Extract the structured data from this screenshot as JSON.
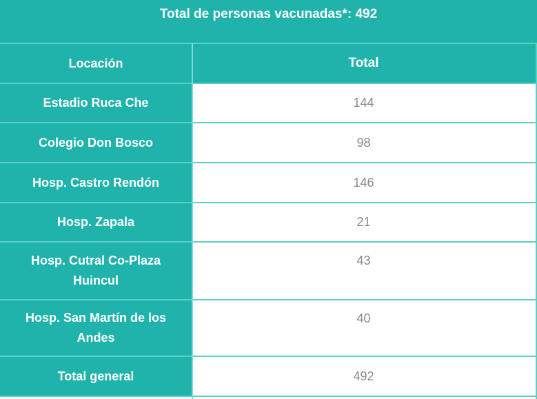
{
  "title": "Total de personas vacunadas*: 492",
  "header": {
    "location": "Locación",
    "total": "Total"
  },
  "rows": [
    {
      "location": "Estadio Ruca Che",
      "total": "144"
    },
    {
      "location": "Colegio Don Bosco",
      "total": "98"
    },
    {
      "location": "Hosp. Castro Rendón",
      "total": "146"
    },
    {
      "location": "Hosp. Zapala",
      "total": "21"
    },
    {
      "location": "Hosp. Cutral Co-Plaza Huincul",
      "total": "43"
    },
    {
      "location": "Hosp. San Martín de los Andes",
      "total": "40"
    }
  ],
  "footer": {
    "location": "Total general",
    "total": "492"
  },
  "colors": {
    "teal": "#1fb3ac",
    "value_text": "#8a8a8a"
  }
}
